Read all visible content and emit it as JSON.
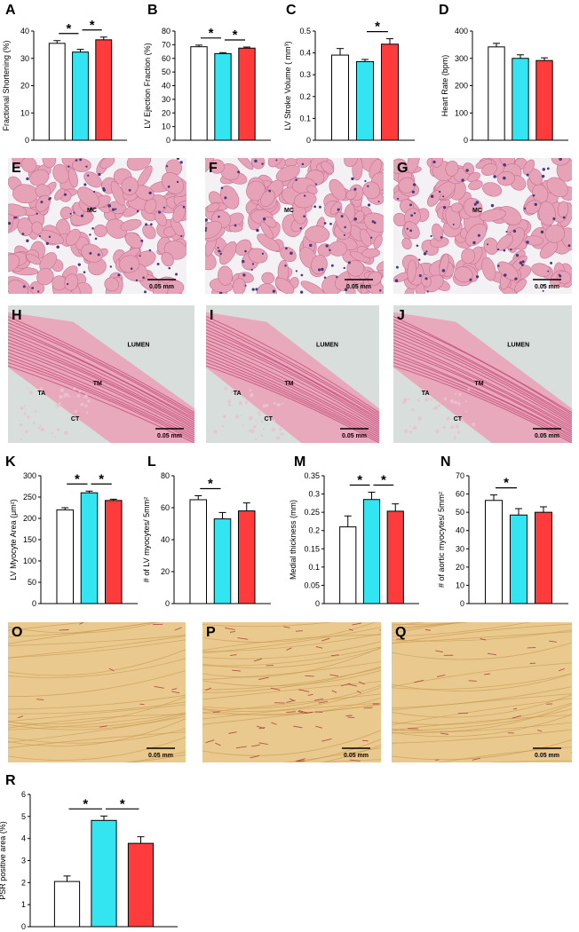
{
  "colors": {
    "group1": "#ffffff",
    "group2": "#33e5f0",
    "group3": "#ff3b3b",
    "he_base": "#e6a3b8",
    "he_stroke": "#c96f92",
    "he_gap": "#f4f1f5",
    "he_nuclei": "#4a3a7a",
    "aorta_bg": "#d8dedb",
    "aorta_wall": "#e8a9bd",
    "aorta_band": "#c64b75",
    "psr_base": "#e9c98d",
    "psr_stroke": "#c99a55",
    "psr_red": "#a8323a"
  },
  "chart_data": [
    {
      "panel": "A",
      "type": "bar",
      "ylabel": "Fractional Shortening (%)",
      "ylim": [
        0,
        40
      ],
      "yticks": [
        "0",
        "10",
        "20",
        "30",
        "40"
      ],
      "values": [
        35.5,
        32.3,
        36.8
      ],
      "errors": [
        1.0,
        1.0,
        1.0
      ],
      "significance": [
        [
          0,
          1,
          "*"
        ],
        [
          1,
          2,
          "*"
        ]
      ]
    },
    {
      "panel": "B",
      "type": "bar",
      "ylabel": "LV Ejection Fraction (%)",
      "ylim": [
        0,
        80
      ],
      "yticks": [
        "0",
        "10",
        "20",
        "30",
        "40",
        "50",
        "60",
        "70",
        "80"
      ],
      "values": [
        68.5,
        63.5,
        67.5
      ],
      "errors": [
        1.2,
        0.7,
        0.8
      ],
      "significance": [
        [
          0,
          1,
          "*"
        ],
        [
          1,
          2,
          "*"
        ]
      ]
    },
    {
      "panel": "C",
      "type": "bar",
      "ylabel": "LV Stroke Volume ( mm³)",
      "ylim": [
        0,
        0.5
      ],
      "yticks": [
        "0",
        "0.1",
        "0.2",
        "0.3",
        "0.4",
        "0.5"
      ],
      "values": [
        0.39,
        0.36,
        0.44
      ],
      "errors": [
        0.03,
        0.01,
        0.025
      ],
      "significance": [
        [
          1,
          2,
          "*"
        ]
      ]
    },
    {
      "panel": "D",
      "type": "bar",
      "ylabel": "Heart Rate (bpm)",
      "ylim": [
        0,
        400
      ],
      "yticks": [
        "0",
        "100",
        "200",
        "300",
        "400"
      ],
      "values": [
        342,
        300,
        292
      ],
      "errors": [
        13,
        13,
        10
      ],
      "significance": []
    },
    {
      "panel": "K",
      "type": "bar",
      "ylabel": "LV Myocyte Area (μm²)",
      "ylim": [
        0,
        300
      ],
      "yticks": [
        "0",
        "50",
        "100",
        "150",
        "200",
        "250",
        "300"
      ],
      "values": [
        220,
        260,
        242
      ],
      "errors": [
        5,
        4,
        3
      ],
      "significance": [
        [
          0,
          1,
          "*"
        ],
        [
          1,
          2,
          "*"
        ]
      ]
    },
    {
      "panel": "L",
      "type": "bar",
      "ylabel": "# of LV myocytes/ 5mm²",
      "ylim": [
        0,
        80
      ],
      "yticks": [
        "0",
        "20",
        "40",
        "60",
        "80"
      ],
      "values": [
        65,
        53,
        58
      ],
      "errors": [
        2.5,
        4,
        5
      ],
      "significance": [
        [
          0,
          1,
          "*"
        ]
      ]
    },
    {
      "panel": "M",
      "type": "bar",
      "ylabel": "Medial thickness (mm)",
      "ylim": [
        0,
        0.35
      ],
      "yticks": [
        "0",
        "0.05",
        "0.1",
        "0.15",
        "0.2",
        "0.25",
        "0.3",
        "0.35"
      ],
      "values": [
        0.21,
        0.285,
        0.253
      ],
      "errors": [
        0.03,
        0.02,
        0.02
      ],
      "significance": [
        [
          0,
          1,
          "*"
        ],
        [
          1,
          2,
          "*"
        ]
      ]
    },
    {
      "panel": "N",
      "type": "bar",
      "ylabel": "# of aortic myocytes/ 5mm²",
      "ylim": [
        0,
        70
      ],
      "yticks": [
        "0",
        "10",
        "20",
        "30",
        "40",
        "50",
        "60",
        "70"
      ],
      "values": [
        56.5,
        48.5,
        50
      ],
      "errors": [
        3,
        3.5,
        3
      ],
      "significance": [
        [
          0,
          1,
          "*"
        ]
      ]
    },
    {
      "panel": "R",
      "type": "bar",
      "ylabel": "PSR positive area (%)",
      "ylim": [
        0,
        6
      ],
      "yticks": [
        "0",
        "1",
        "2",
        "3",
        "4",
        "5",
        "6"
      ],
      "values": [
        2.05,
        4.82,
        3.78
      ],
      "errors": [
        0.25,
        0.2,
        0.3
      ],
      "significance": [
        [
          0,
          1,
          "*"
        ],
        [
          1,
          2,
          "*"
        ]
      ]
    }
  ],
  "micrographs": [
    {
      "panel": "E",
      "kind": "he",
      "labels": [
        "MC"
      ],
      "scale": "0.05 mm"
    },
    {
      "panel": "F",
      "kind": "he",
      "labels": [
        "MC"
      ],
      "scale": "0.05 mm"
    },
    {
      "panel": "G",
      "kind": "he",
      "labels": [
        "MC"
      ],
      "scale": "0.05 mm"
    },
    {
      "panel": "H",
      "kind": "aorta",
      "labels": [
        "LUMEN",
        "TM",
        "TA",
        "CT"
      ],
      "scale": "0.05 mm"
    },
    {
      "panel": "I",
      "kind": "aorta",
      "labels": [
        "LUMEN",
        "TM",
        "TA",
        "CT"
      ],
      "scale": "0.05 mm"
    },
    {
      "panel": "J",
      "kind": "aorta",
      "labels": [
        "LUMEN",
        "TM",
        "TA",
        "CT"
      ],
      "scale": "0.05 mm"
    },
    {
      "panel": "O",
      "kind": "psr",
      "labels": [],
      "scale": "0.05 mm"
    },
    {
      "panel": "P",
      "kind": "psr",
      "labels": [],
      "scale": "0.05 mm"
    },
    {
      "panel": "Q",
      "kind": "psr",
      "labels": [],
      "scale": "0.05 mm"
    }
  ]
}
